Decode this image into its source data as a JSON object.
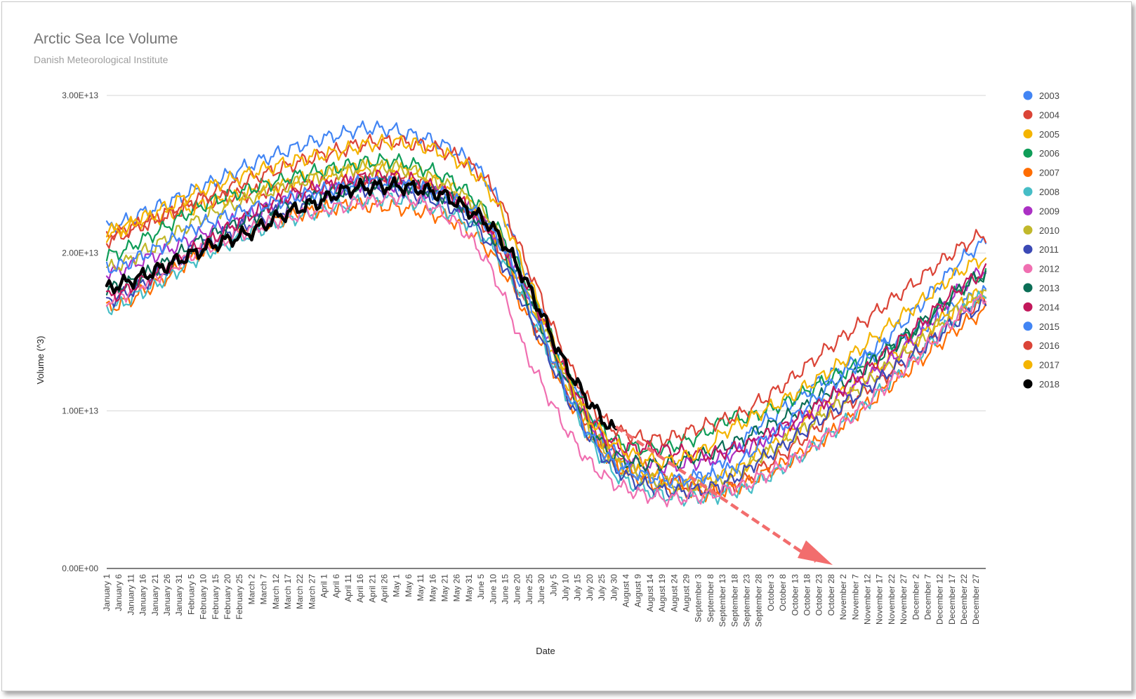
{
  "chart_data": {
    "type": "line",
    "title": "Arctic Sea Ice Volume",
    "subtitle": "Danish Meteorological Institute",
    "xlabel": "Date",
    "ylabel": "Volume (^3)",
    "x_range_day_of_year": [
      1,
      365
    ],
    "ylim": [
      0,
      30000000000000
    ],
    "y_ticks": [
      0,
      10000000000000,
      20000000000000,
      30000000000000
    ],
    "y_tick_labels": [
      "0.00E+00",
      "1.00E+13",
      "2.00E+13",
      "3.00E+13"
    ],
    "x_tick_labels": [
      "January 1",
      "January 6",
      "January 11",
      "January 16",
      "January 21",
      "January 26",
      "January 31",
      "February 5",
      "February 10",
      "February 15",
      "February 20",
      "February 25",
      "March 2",
      "March 7",
      "March 12",
      "March 17",
      "March 22",
      "March 27",
      "April 1",
      "April 6",
      "April 11",
      "April 16",
      "April 21",
      "April 26",
      "May 1",
      "May 6",
      "May 11",
      "May 16",
      "May 21",
      "May 26",
      "May 31",
      "June 5",
      "June 10",
      "June 15",
      "June 20",
      "June 25",
      "June 30",
      "July 5",
      "July 10",
      "July 15",
      "July 20",
      "July 25",
      "July 30",
      "August 4",
      "August 9",
      "August 14",
      "August 19",
      "August 24",
      "August 29",
      "September 3",
      "September 8",
      "September 13",
      "September 18",
      "September 23",
      "September 28",
      "October 3",
      "October 8",
      "October 13",
      "October 18",
      "October 23",
      "October 28",
      "November 2",
      "November 7",
      "November 12",
      "November 17",
      "November 22",
      "November 27",
      "December 2",
      "December 7",
      "December 12",
      "December 17",
      "December 22",
      "December 27"
    ],
    "grid": true,
    "legend_position": "right",
    "series": [
      {
        "name": "2003",
        "color": "#4285f4",
        "days": [
          1,
          15,
          40,
          70,
          100,
          110,
          125,
          145,
          160,
          175,
          195,
          210,
          230,
          248,
          258,
          270,
          300,
          330,
          365
        ],
        "values": [
          21600000000000.0,
          22500000000000.0,
          24200000000000.0,
          26200000000000.0,
          27600000000000.0,
          27900000000000.0,
          27600000000000.0,
          26500000000000.0,
          24200000000000.0,
          18500000000000.0,
          11500000000000.0,
          7500000000000.0,
          5500000000000.0,
          5800000000000.0,
          7200000000000.0,
          9000000000000.0,
          12200000000000.0,
          14500000000000.0,
          17500000000000.0
        ]
      },
      {
        "name": "2004",
        "color": "#db4437",
        "days": [
          1,
          15,
          40,
          70,
          100,
          110,
          125,
          145,
          160,
          175,
          195,
          210,
          230,
          248,
          258,
          270,
          300,
          330,
          365
        ],
        "values": [
          21200000000000.0,
          21800000000000.0,
          23200000000000.0,
          24000000000000.0,
          24600000000000.0,
          24900000000000.0,
          24700000000000.0,
          23500000000000.0,
          21200000000000.0,
          16500000000000.0,
          10500000000000.0,
          7500000000000.0,
          6000000000000.0,
          5000000000000.0,
          5200000000000.0,
          6200000000000.0,
          9500000000000.0,
          13000000000000.0,
          17000000000000.0
        ]
      },
      {
        "name": "2005",
        "color": "#f4b400",
        "days": [
          1,
          15,
          40,
          70,
          100,
          110,
          125,
          145,
          160,
          175,
          195,
          210,
          230,
          248,
          258,
          270,
          300,
          330,
          365
        ],
        "values": [
          21200000000000.0,
          22000000000000.0,
          23000000000000.0,
          24200000000000.0,
          25200000000000.0,
          25500000000000.0,
          25200000000000.0,
          24000000000000.0,
          21500000000000.0,
          17000000000000.0,
          10500000000000.0,
          7000000000000.0,
          5700000000000.0,
          5500000000000.0,
          6000000000000.0,
          7200000000000.0,
          10500000000000.0,
          13800000000000.0,
          17600000000000.0
        ]
      },
      {
        "name": "2006",
        "color": "#0f9d58",
        "days": [
          1,
          15,
          40,
          70,
          100,
          110,
          125,
          145,
          160,
          175,
          195,
          210,
          230,
          248,
          258,
          270,
          300,
          330,
          365
        ],
        "values": [
          19800000000000.0,
          20800000000000.0,
          23000000000000.0,
          24500000000000.0,
          25500000000000.0,
          25800000000000.0,
          25700000000000.0,
          24500000000000.0,
          22200000000000.0,
          18000000000000.0,
          11500000000000.0,
          8300000000000.0,
          7600000000000.0,
          8500000000000.0,
          9500000000000.0,
          9800000000000.0,
          12000000000000.0,
          14500000000000.0,
          18700000000000.0
        ]
      },
      {
        "name": "2007",
        "color": "#ff6d00",
        "days": [
          1,
          15,
          40,
          70,
          100,
          110,
          125,
          145,
          160,
          175,
          195,
          210,
          230,
          248,
          258,
          270,
          300,
          330,
          365
        ],
        "values": [
          16500000000000.0,
          17500000000000.0,
          20000000000000.0,
          22000000000000.0,
          23000000000000.0,
          23000000000000.0,
          22800000000000.0,
          22000000000000.0,
          20000000000000.0,
          16000000000000.0,
          10000000000000.0,
          6800000000000.0,
          5200000000000.0,
          4800000000000.0,
          5000000000000.0,
          5800000000000.0,
          8500000000000.0,
          12200000000000.0,
          16300000000000.0
        ]
      },
      {
        "name": "2008",
        "color": "#46bdc6",
        "days": [
          1,
          15,
          40,
          70,
          100,
          110,
          125,
          145,
          160,
          175,
          195,
          210,
          230,
          248,
          258,
          270,
          300,
          330,
          365
        ],
        "values": [
          16500000000000.0,
          17500000000000.0,
          19800000000000.0,
          21800000000000.0,
          23000000000000.0,
          23400000000000.0,
          23300000000000.0,
          22400000000000.0,
          20500000000000.0,
          16500000000000.0,
          10000000000000.0,
          6200000000000.0,
          4700000000000.0,
          4500000000000.0,
          4800000000000.0,
          5500000000000.0,
          8500000000000.0,
          12500000000000.0,
          17300000000000.0
        ]
      },
      {
        "name": "2009",
        "color": "#ab30c4",
        "days": [
          1,
          15,
          40,
          70,
          100,
          110,
          125,
          145,
          160,
          175,
          195,
          210,
          230,
          248,
          258,
          270,
          300,
          330,
          365
        ],
        "values": [
          18700000000000.0,
          19500000000000.0,
          21200000000000.0,
          23000000000000.0,
          24200000000000.0,
          24400000000000.0,
          24200000000000.0,
          23300000000000.0,
          21500000000000.0,
          17500000000000.0,
          11000000000000.0,
          7500000000000.0,
          6500000000000.0,
          6800000000000.0,
          7200000000000.0,
          8000000000000.0,
          10500000000000.0,
          13800000000000.0,
          19000000000000.0
        ]
      },
      {
        "name": "2010",
        "color": "#c1b82b",
        "days": [
          1,
          15,
          40,
          70,
          100,
          110,
          125,
          145,
          160,
          175,
          195,
          210,
          230,
          248,
          258,
          270,
          300,
          330,
          365
        ],
        "values": [
          19000000000000.0,
          20000000000000.0,
          22200000000000.0,
          24000000000000.0,
          25200000000000.0,
          25400000000000.0,
          25300000000000.0,
          24000000000000.0,
          22000000000000.0,
          17500000000000.0,
          10800000000000.0,
          7000000000000.0,
          5500000000000.0,
          5200000000000.0,
          5800000000000.0,
          7000000000000.0,
          10000000000000.0,
          13500000000000.0,
          17500000000000.0
        ]
      },
      {
        "name": "2011",
        "color": "#3b49b5",
        "days": [
          1,
          15,
          40,
          70,
          100,
          110,
          125,
          145,
          160,
          175,
          195,
          210,
          230,
          248,
          258,
          270,
          300,
          330,
          365
        ],
        "values": [
          17000000000000.0,
          18000000000000.0,
          20500000000000.0,
          22500000000000.0,
          23800000000000.0,
          24000000000000.0,
          23800000000000.0,
          22800000000000.0,
          20500000000000.0,
          16200000000000.0,
          10000000000000.0,
          6500000000000.0,
          5000000000000.0,
          5000000000000.0,
          5500000000000.0,
          6800000000000.0,
          9800000000000.0,
          13000000000000.0,
          16700000000000.0
        ]
      },
      {
        "name": "2012",
        "color": "#f06fb1",
        "days": [
          1,
          15,
          40,
          70,
          100,
          110,
          125,
          145,
          160,
          175,
          195,
          210,
          230,
          248,
          258,
          270,
          300,
          330,
          365
        ],
        "values": [
          17000000000000.0,
          18000000000000.0,
          20200000000000.0,
          22000000000000.0,
          23000000000000.0,
          23300000000000.0,
          23500000000000.0,
          22000000000000.0,
          19000000000000.0,
          13500000000000.0,
          8000000000000.0,
          5500000000000.0,
          4500000000000.0,
          4600000000000.0,
          5000000000000.0,
          5700000000000.0,
          8500000000000.0,
          12500000000000.0,
          17200000000000.0
        ]
      },
      {
        "name": "2013",
        "color": "#0b6e56",
        "days": [
          1,
          15,
          40,
          70,
          100,
          110,
          125,
          145,
          160,
          175,
          195,
          210,
          230,
          248,
          258,
          270,
          300,
          330,
          365
        ],
        "values": [
          17700000000000.0,
          18500000000000.0,
          20800000000000.0,
          22800000000000.0,
          24000000000000.0,
          24500000000000.0,
          24300000000000.0,
          23300000000000.0,
          21200000000000.0,
          17200000000000.0,
          10800000000000.0,
          7300000000000.0,
          6600000000000.0,
          7200000000000.0,
          7800000000000.0,
          8700000000000.0,
          11200000000000.0,
          14500000000000.0,
          18700000000000.0
        ]
      },
      {
        "name": "2014",
        "color": "#c2185b",
        "days": [
          1,
          15,
          40,
          70,
          100,
          110,
          125,
          145,
          160,
          175,
          195,
          210,
          230,
          248,
          258,
          270,
          300,
          330,
          365
        ],
        "values": [
          17200000000000.0,
          18200000000000.0,
          20500000000000.0,
          23200000000000.0,
          24500000000000.0,
          24800000000000.0,
          24700000000000.0,
          23500000000000.0,
          21500000000000.0,
          17800000000000.0,
          11200000000000.0,
          8000000000000.0,
          7600000000000.0,
          7200000000000.0,
          7500000000000.0,
          8200000000000.0,
          10800000000000.0,
          14500000000000.0,
          18800000000000.0
        ]
      },
      {
        "name": "2015",
        "color": "#4285f4",
        "days": [
          1,
          15,
          40,
          70,
          100,
          110,
          125,
          145,
          160,
          175,
          195,
          210,
          230,
          248,
          258,
          270,
          300,
          330,
          365
        ],
        "values": [
          19000000000000.0,
          19800000000000.0,
          21800000000000.0,
          23200000000000.0,
          24200000000000.0,
          24500000000000.0,
          24300000000000.0,
          23400000000000.0,
          21500000000000.0,
          17200000000000.0,
          10200000000000.0,
          6800000000000.0,
          5700000000000.0,
          5800000000000.0,
          6200000000000.0,
          7800000000000.0,
          11500000000000.0,
          15500000000000.0,
          20700000000000.0
        ]
      },
      {
        "name": "2016",
        "color": "#db4437",
        "days": [
          1,
          15,
          40,
          70,
          100,
          110,
          125,
          145,
          160,
          175,
          195,
          210,
          230,
          248,
          258,
          270,
          300,
          330,
          365
        ],
        "values": [
          20800000000000.0,
          21800000000000.0,
          23500000000000.0,
          25200000000000.0,
          26600000000000.0,
          27000000000000.0,
          27000000000000.0,
          26200000000000.0,
          24200000000000.0,
          19200000000000.0,
          12200000000000.0,
          9000000000000.0,
          8200000000000.0,
          9000000000000.0,
          9500000000000.0,
          10500000000000.0,
          14000000000000.0,
          17500000000000.0,
          21200000000000.0
        ]
      },
      {
        "name": "2017",
        "color": "#f4b400",
        "days": [
          1,
          15,
          40,
          70,
          100,
          110,
          125,
          145,
          160,
          175,
          195,
          210,
          230,
          248,
          258,
          270,
          300,
          330,
          365
        ],
        "values": [
          21300000000000.0,
          22200000000000.0,
          24000000000000.0,
          25500000000000.0,
          26500000000000.0,
          26900000000000.0,
          27000000000000.0,
          26000000000000.0,
          23800000000000.0,
          18500000000000.0,
          11200000000000.0,
          8000000000000.0,
          6800000000000.0,
          7500000000000.0,
          8800000000000.0,
          9800000000000.0,
          12500000000000.0,
          16000000000000.0,
          19700000000000.0
        ]
      },
      {
        "name": "2018",
        "color": "#000000",
        "days": [
          1,
          15,
          30,
          45,
          60,
          75,
          90,
          100,
          110,
          125,
          140,
          150,
          160,
          170,
          180,
          190,
          200,
          212
        ],
        "values": [
          17800000000000.0,
          18500000000000.0,
          19500000000000.0,
          20500000000000.0,
          21300000000000.0,
          22500000000000.0,
          23300000000000.0,
          24000000000000.0,
          24200000000000.0,
          24200000000000.0,
          23700000000000.0,
          22800000000000.0,
          21700000000000.0,
          19500000000000.0,
          16500000000000.0,
          13200000000000.0,
          10700000000000.0,
          8700000000000.0
        ]
      }
    ]
  }
}
